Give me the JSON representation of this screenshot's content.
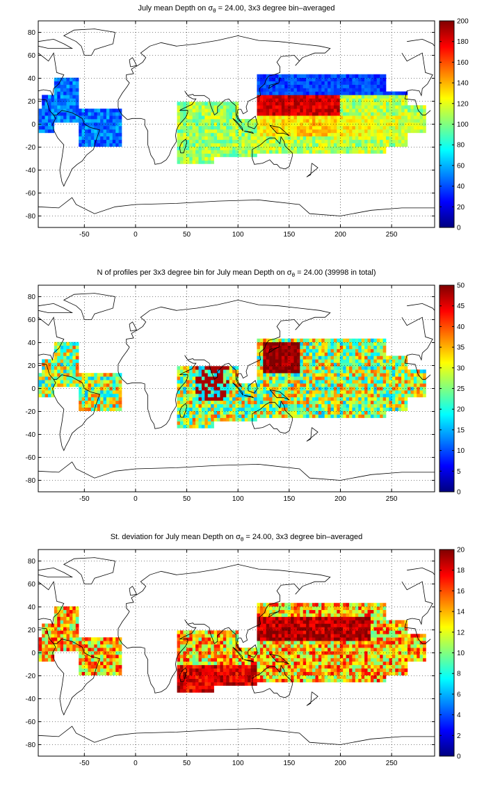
{
  "chart_data": [
    {
      "type": "heatmap",
      "title_parts": {
        "before": "July mean Depth on ",
        "sigma": "σ",
        "sub": "θ",
        "after": " = 24.00, 3x3 degree bin–averaged"
      },
      "xlabel": "",
      "ylabel": "",
      "x_ticks": [
        "-50",
        "0",
        "50",
        "100",
        "150",
        "200",
        "250"
      ],
      "y_ticks": [
        "80",
        "60",
        "40",
        "20",
        "0",
        "-20",
        "-40",
        "-60",
        "-80"
      ],
      "xlim": [
        -95,
        292
      ],
      "ylim": [
        -90,
        90
      ],
      "grid": true,
      "colorbar": {
        "min": 0,
        "max": 200,
        "ticks": [
          "200",
          "180",
          "160",
          "140",
          "120",
          "100",
          "80",
          "60",
          "40",
          "20",
          "0"
        ]
      },
      "field": "mean_depth"
    },
    {
      "type": "heatmap",
      "title_parts": {
        "before": "N of profiles per 3x3 degree bin for July mean Depth on ",
        "sigma": "σ",
        "sub": "θ",
        "after": " = 24.00 (39998 in total)"
      },
      "xlabel": "",
      "ylabel": "",
      "x_ticks": [
        "-50",
        "0",
        "50",
        "100",
        "150",
        "200",
        "250"
      ],
      "y_ticks": [
        "80",
        "60",
        "40",
        "20",
        "0",
        "-20",
        "-40",
        "-60",
        "-80"
      ],
      "xlim": [
        -95,
        292
      ],
      "ylim": [
        -90,
        90
      ],
      "grid": true,
      "colorbar": {
        "min": 0,
        "max": 50,
        "ticks": [
          "50",
          "45",
          "40",
          "35",
          "30",
          "25",
          "20",
          "15",
          "10",
          "5",
          "0"
        ]
      },
      "field": "profile_count"
    },
    {
      "type": "heatmap",
      "title_parts": {
        "before": "St. deviation for July mean Depth on ",
        "sigma": "σ",
        "sub": "θ",
        "after": " = 24.00, 3x3 degree bin–averaged"
      },
      "xlabel": "",
      "ylabel": "",
      "x_ticks": [
        "-50",
        "0",
        "50",
        "100",
        "150",
        "200",
        "250"
      ],
      "y_ticks": [
        "80",
        "60",
        "40",
        "20",
        "0",
        "-20",
        "-40",
        "-60",
        "-80"
      ],
      "xlim": [
        -95,
        292
      ],
      "ylim": [
        -90,
        90
      ],
      "grid": true,
      "colorbar": {
        "min": 0,
        "max": 20,
        "ticks": [
          "20",
          "18",
          "16",
          "14",
          "12",
          "10",
          "8",
          "6",
          "4",
          "2",
          "0"
        ]
      },
      "field": "std_dev"
    }
  ],
  "colormap": "jet",
  "colors": {
    "coastline": "#000000",
    "grid": "#000000",
    "background": "#ffffff"
  }
}
